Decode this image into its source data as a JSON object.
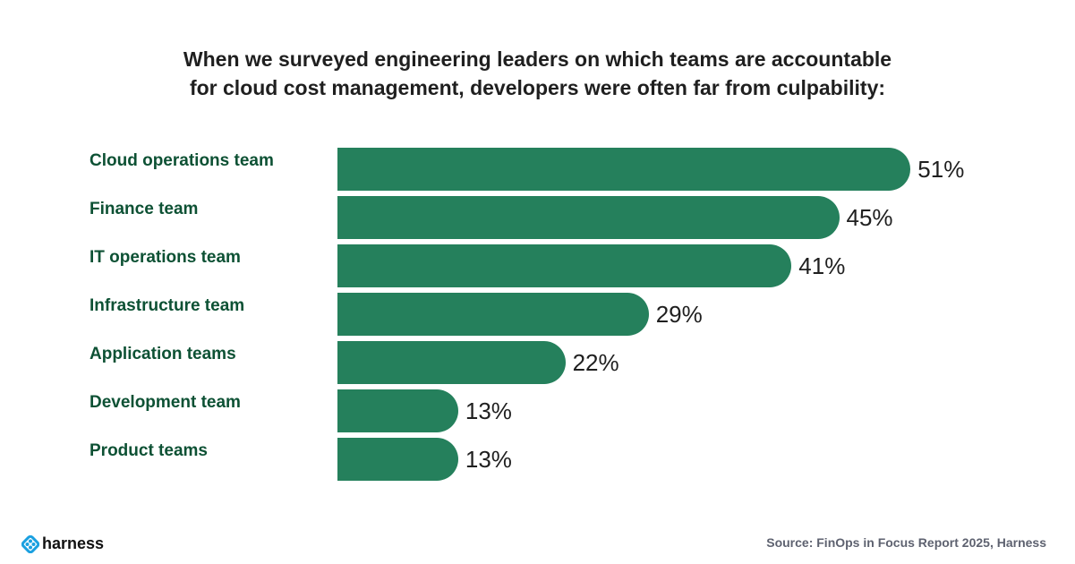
{
  "title": {
    "line1": "When we surveyed engineering leaders on which teams are accountable",
    "line2": "for cloud cost management, developers were often far from culpability:"
  },
  "chart_data": {
    "type": "bar",
    "orientation": "horizontal",
    "title": "When we surveyed engineering leaders on which teams are accountable for cloud cost management, developers were often far from culpability:",
    "categories": [
      "Cloud operations team",
      "Finance team",
      "IT operations team",
      "Infrastructure team",
      "Application teams",
      "Development team",
      "Product teams"
    ],
    "values": [
      51,
      45,
      41,
      29,
      22,
      13,
      13
    ],
    "value_labels": [
      "51%",
      "45%",
      "41%",
      "29%",
      "22%",
      "13%",
      "13%"
    ],
    "unit": "%",
    "bar_color": "#25805c",
    "xlabel": "",
    "ylabel": "",
    "grid": false
  },
  "footer": {
    "logo_text": "harness",
    "logo_icon": "harness-logo-icon",
    "source": "Source: FinOps in Focus Report 2025, Harness"
  }
}
